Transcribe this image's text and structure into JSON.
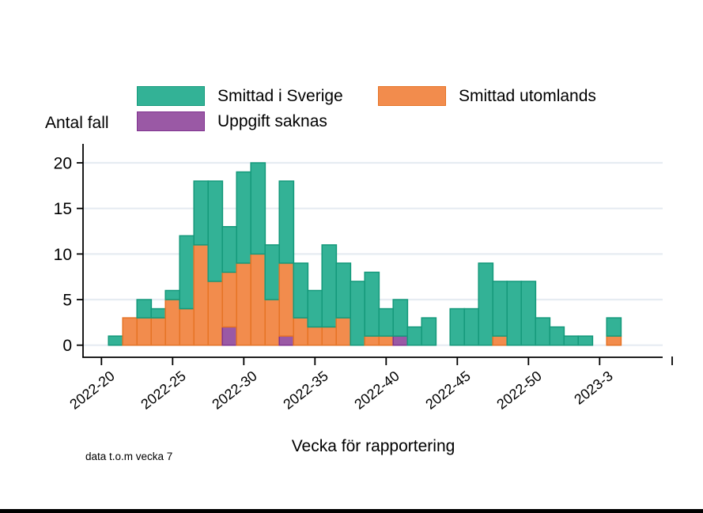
{
  "page": {
    "background": "#ffffff",
    "footer_bar_color": "#000000"
  },
  "chart_data": {
    "type": "bar",
    "stacked": true,
    "title": "",
    "ylabel": "Antal fall",
    "xlabel": "Vecka för rapportering",
    "footnote": "data t.o.m vecka 7",
    "ylim": [
      0,
      20
    ],
    "yticks": [
      0,
      5,
      10,
      15,
      20
    ],
    "xticks": [
      "2022-20",
      "2022-25",
      "2022-30",
      "2022-35",
      "2022-40",
      "2022-45",
      "2022-50",
      "2023-3"
    ],
    "x_end_tick": true,
    "grid": true,
    "gridline_color": "#e6ecf2",
    "legend_position": "top-left",
    "categories": [
      "2022-20",
      "2022-21",
      "2022-22",
      "2022-23",
      "2022-24",
      "2022-25",
      "2022-26",
      "2022-27",
      "2022-28",
      "2022-29",
      "2022-30",
      "2022-31",
      "2022-32",
      "2022-33",
      "2022-34",
      "2022-35",
      "2022-36",
      "2022-37",
      "2022-38",
      "2022-39",
      "2022-40",
      "2022-41",
      "2022-42",
      "2022-43",
      "2022-44",
      "2022-45",
      "2022-46",
      "2022-47",
      "2022-48",
      "2022-49",
      "2022-50",
      "2022-51",
      "2022-52",
      "2023-1",
      "2023-2",
      "2023-3",
      "2023-4",
      "2023-5",
      "2023-6",
      "2023-7"
    ],
    "series": [
      {
        "name": "Smittad i Sverige",
        "color": "#33b296",
        "border": "#14997b",
        "values": [
          0,
          1,
          0,
          2,
          1,
          1,
          8,
          7,
          11,
          5,
          10,
          10,
          6,
          9,
          6,
          4,
          9,
          6,
          7,
          7,
          3,
          4,
          2,
          3,
          0,
          4,
          4,
          9,
          6,
          7,
          7,
          3,
          2,
          1,
          1,
          0,
          2,
          0,
          0,
          0
        ]
      },
      {
        "name": "Smittad utomlands",
        "color": "#f28c4d",
        "border": "#e67325",
        "values": [
          0,
          0,
          3,
          3,
          3,
          5,
          4,
          11,
          7,
          6,
          9,
          10,
          5,
          8,
          3,
          2,
          2,
          3,
          0,
          1,
          1,
          0,
          0,
          0,
          0,
          0,
          0,
          0,
          1,
          0,
          0,
          0,
          0,
          0,
          0,
          0,
          1,
          0,
          0,
          0
        ]
      },
      {
        "name": "Uppgift saknas",
        "color": "#9a59a5",
        "border": "#803290",
        "values": [
          0,
          0,
          0,
          0,
          0,
          0,
          0,
          0,
          0,
          2,
          0,
          0,
          0,
          1,
          0,
          0,
          0,
          0,
          0,
          0,
          0,
          1,
          0,
          0,
          0,
          0,
          0,
          0,
          0,
          0,
          0,
          0,
          0,
          0,
          0,
          0,
          0,
          0,
          0,
          0
        ]
      }
    ],
    "stack_order_bottom_to_top": [
      "Uppgift saknas",
      "Smittad utomlands",
      "Smittad i Sverige"
    ]
  }
}
